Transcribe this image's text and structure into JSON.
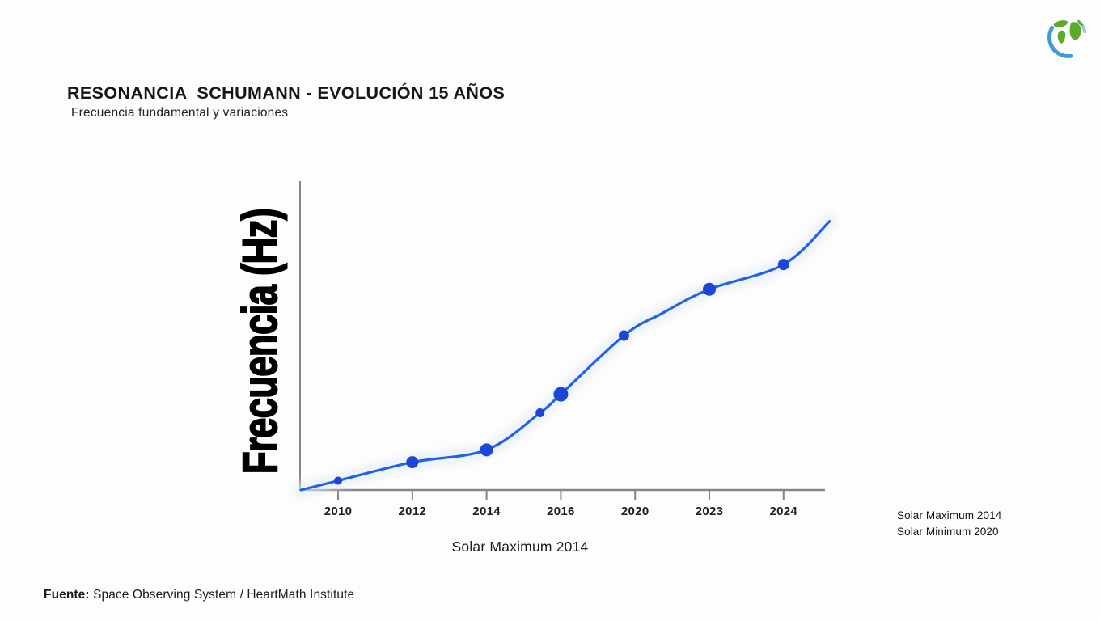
{
  "header": {
    "title": "RESONANCIA  SCHUMANN - EVOLUCIÓN 15 AÑOS",
    "subtitle": "Frecuencia fundamental y variaciones"
  },
  "icons": {
    "top_right_logo": "earth-globe-icon"
  },
  "chart_data": {
    "type": "line",
    "title": "Resonancia Schumann - Evolución 15 años",
    "ylabel": "Frecuencia (Hz)",
    "xlabel": "",
    "x_caption": "Solar Maximum 2014",
    "categories": [
      "2010",
      "2012",
      "2014",
      "2016",
      "2020",
      "2023",
      "2024"
    ],
    "y_axis_ticks": "none (unlabeled relative frequency scale)",
    "ylim_rel": [
      0,
      1
    ],
    "grid": false,
    "legend_position": "outside-right",
    "line_color": "#2263e6",
    "dot_color": "#1c46d4",
    "axis_color": "#858585",
    "halo_color": "#e3ecf6",
    "points": [
      {
        "year": "",
        "x_tick_pos": -0.5,
        "value_rel": 0.0,
        "dot_radius": 0
      },
      {
        "year": "2010",
        "x_tick_pos": 0,
        "value_rel": 0.03,
        "dot_radius": 5
      },
      {
        "year": "2012",
        "x_tick_pos": 1,
        "value_rel": 0.09,
        "dot_radius": 7.5
      },
      {
        "year": "2014",
        "x_tick_pos": 2,
        "value_rel": 0.13,
        "dot_radius": 8
      },
      {
        "year": "~2015",
        "x_tick_pos": 2.72,
        "value_rel": 0.25,
        "dot_radius": 5.5
      },
      {
        "year": "2016",
        "x_tick_pos": 3,
        "value_rel": 0.31,
        "dot_radius": 9
      },
      {
        "year": "~2019",
        "x_tick_pos": 3.85,
        "value_rel": 0.5,
        "dot_radius": 6.5
      },
      {
        "year": "",
        "x_tick_pos": 4.35,
        "value_rel": 0.57,
        "dot_radius": 0
      },
      {
        "year": "2023",
        "x_tick_pos": 5,
        "value_rel": 0.65,
        "dot_radius": 8
      },
      {
        "year": "2024",
        "x_tick_pos": 6,
        "value_rel": 0.73,
        "dot_radius": 7
      },
      {
        "year": "",
        "x_tick_pos": 6.62,
        "value_rel": 0.87,
        "dot_radius": 0
      }
    ]
  },
  "legend": {
    "line1": "Solar Maximum 2014",
    "line2": "Solar Minimum 2020"
  },
  "source": {
    "label": "Fuente:",
    "text": " Space Observing System / HeartMath Institute"
  }
}
